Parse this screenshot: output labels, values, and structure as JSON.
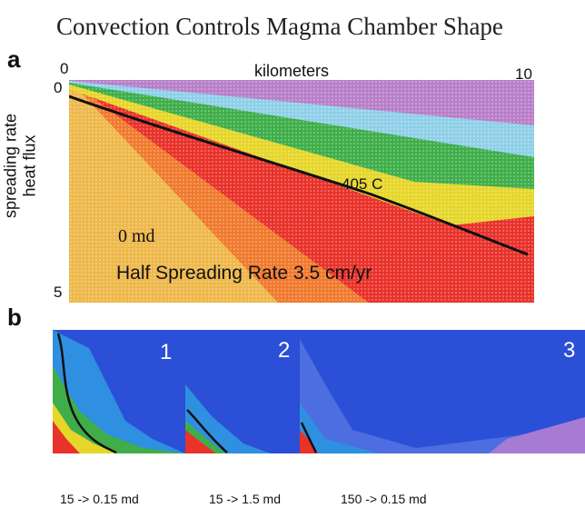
{
  "title": "Convection Controls Magma Chamber Shape",
  "panel_a": {
    "letter": "a",
    "x_axis": {
      "label": "kilometers",
      "tick_start": "0",
      "tick_end": "10"
    },
    "y_axis": {
      "tick_start": "0",
      "tick_end": "5",
      "label_line1": "spreading rate",
      "label_line2": "heat flux"
    },
    "isotherm_label": "405 C",
    "permeability_label": "0 md",
    "caption": "Half Spreading Rate 3.5 cm/yr",
    "colors": {
      "red": "#e8322a",
      "orange": "#f28a2e",
      "yellow": "#e6d62a",
      "green": "#3fae4a",
      "cyan": "#8fd0e8",
      "purple": "#b87fc9"
    }
  },
  "panel_b": {
    "letter": "b",
    "frames": [
      {
        "number": "1",
        "caption": "15 -> 0.15 md"
      },
      {
        "number": "2",
        "caption": "15 -> 1.5 md"
      },
      {
        "number": "3",
        "caption": "150 -> 0.15 md"
      }
    ],
    "colors": {
      "blue": "#2b4fd6",
      "light_blue": "#2f8fe0"
    }
  }
}
